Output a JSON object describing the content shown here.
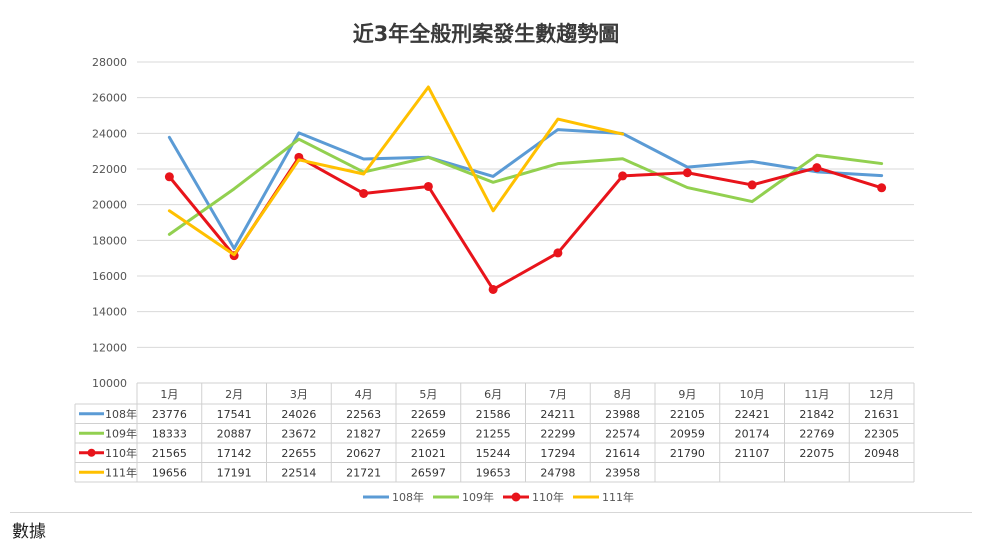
{
  "footer": {
    "label": "數據"
  },
  "chart_data": {
    "type": "line",
    "title": "近3年全般刑案發生數趨勢圖",
    "xlabel": "",
    "ylabel": "",
    "ylim": [
      10000,
      28000
    ],
    "yticks": [
      10000,
      12000,
      14000,
      16000,
      18000,
      20000,
      22000,
      24000,
      26000,
      28000
    ],
    "grid": true,
    "legend_position": "bottom",
    "data_table": true,
    "categories": [
      "1月",
      "2月",
      "3月",
      "4月",
      "5月",
      "6月",
      "7月",
      "8月",
      "9月",
      "10月",
      "11月",
      "12月"
    ],
    "series": [
      {
        "name": "108年",
        "color": "#5b9bd5",
        "markers": false,
        "values": [
          23776,
          17541,
          24026,
          22563,
          22659,
          21586,
          24211,
          23988,
          22105,
          22421,
          21842,
          21631
        ]
      },
      {
        "name": "109年",
        "color": "#92d050",
        "markers": false,
        "values": [
          18333,
          20887,
          23672,
          21827,
          22659,
          21255,
          22299,
          22574,
          20959,
          20174,
          22769,
          22305
        ]
      },
      {
        "name": "110年",
        "color": "#e8141b",
        "markers": true,
        "values": [
          21565,
          17142,
          22655,
          20627,
          21021,
          15244,
          17294,
          21614,
          21790,
          21107,
          22075,
          20948
        ]
      },
      {
        "name": "111年",
        "color": "#ffc000",
        "markers": false,
        "values": [
          19656,
          17191,
          22514,
          21721,
          26597,
          19653,
          24798,
          23958,
          null,
          null,
          null,
          null
        ]
      }
    ]
  }
}
